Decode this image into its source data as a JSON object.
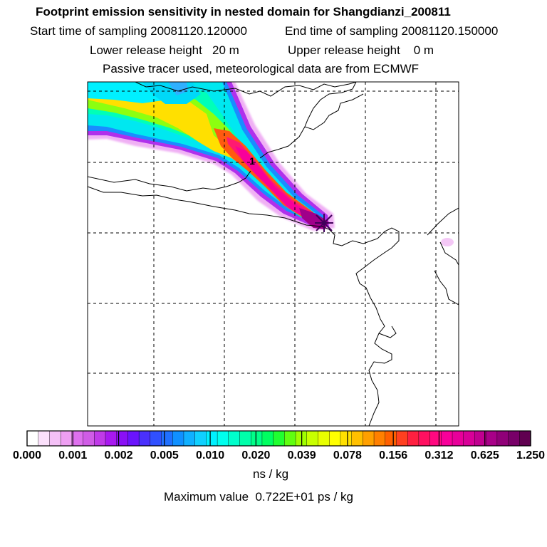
{
  "header": {
    "title": "Footprint emission sensitivity in nested domain for Shangdianzi_200811",
    "start_label": "Start time of sampling 20081120.120000",
    "end_label": "End time of sampling 20081120.150000",
    "lower_label": "Lower release height   20 m",
    "upper_label": "Upper release height    0 m",
    "tracer_label": "Passive tracer used, meteorological data are from ECMWF"
  },
  "map": {
    "marker_label": "1",
    "station_icon": "station-star-icon"
  },
  "colorbar": {
    "ticks": [
      "0.000",
      "0.001",
      "0.002",
      "0.005",
      "0.010",
      "0.020",
      "0.039",
      "0.078",
      "0.156",
      "0.312",
      "0.625",
      "1.250"
    ],
    "units": "ns / kg",
    "max_value": "Maximum value  0.722E+01 ps / kg",
    "colors": [
      "#ffffff",
      "#fbe0fb",
      "#f4c0f6",
      "#ee9ff2",
      "#de70ee",
      "#d05ce6",
      "#c03ae8",
      "#a818f0",
      "#8a10f6",
      "#6a14fc",
      "#4a30fc",
      "#3050ff",
      "#2070ff",
      "#1090ff",
      "#10b0ff",
      "#10d0ff",
      "#00f0ff",
      "#00ffee",
      "#00ffcc",
      "#00ffaa",
      "#00ff88",
      "#00ff60",
      "#20ff30",
      "#60ff10",
      "#a0ff00",
      "#c8ff00",
      "#e8ff00",
      "#ffff00",
      "#ffe000",
      "#ffc000",
      "#ffa000",
      "#ff8000",
      "#ff6000",
      "#ff4020",
      "#ff2040",
      "#ff1060",
      "#ff0880",
      "#f8009a",
      "#e8009a",
      "#d80098",
      "#c00090",
      "#a80088",
      "#900078",
      "#780068",
      "#600050"
    ]
  }
}
